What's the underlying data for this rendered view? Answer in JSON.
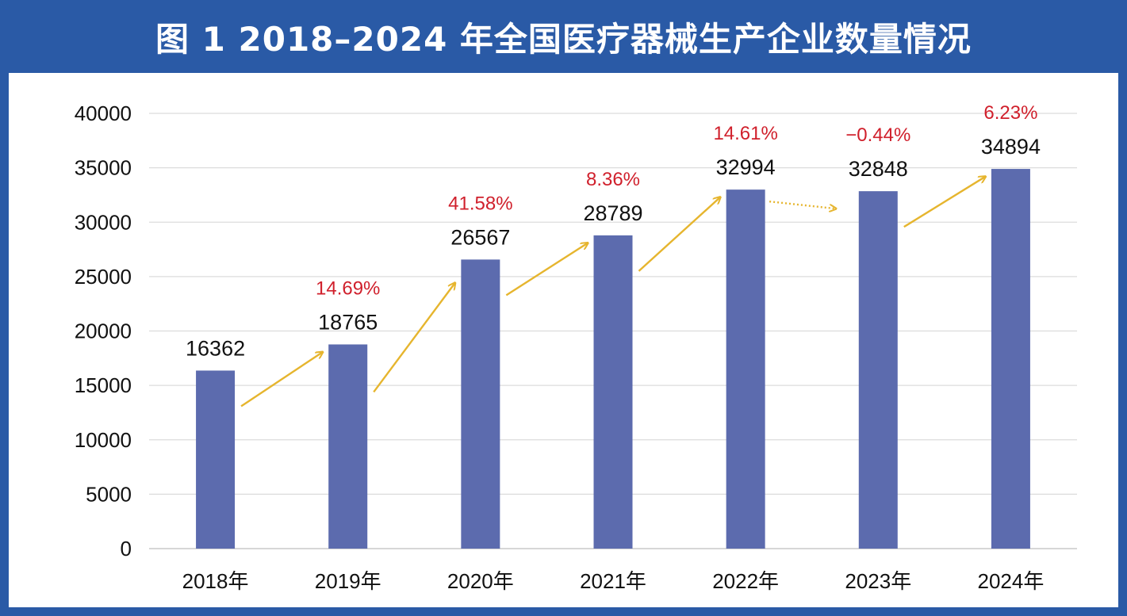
{
  "title": "图 1 2018–2024 年全国医疗器械生产企业数量情况",
  "colors": {
    "frame": "#2a5aa6",
    "bar": "#5c6bae",
    "arrow": "#e6b52e",
    "growth_text": "#d0202c",
    "grid": "#dcdcdc"
  },
  "chart_data": {
    "type": "bar",
    "title": "图 1 2018–2024 年全国医疗器械生产企业数量情况",
    "xlabel": "",
    "ylabel": "",
    "ylim": [
      0,
      40000
    ],
    "yticks": [
      0,
      5000,
      10000,
      15000,
      20000,
      25000,
      30000,
      35000,
      40000
    ],
    "grid": true,
    "legend": "none",
    "categories": [
      "2018年",
      "2019年",
      "2020年",
      "2021年",
      "2022年",
      "2023年",
      "2024年"
    ],
    "values": [
      16362,
      18765,
      26567,
      28789,
      32994,
      32848,
      34894
    ],
    "value_labels": [
      "16362",
      "18765",
      "26567",
      "28789",
      "32994",
      "32848",
      "34894"
    ],
    "growth_labels": [
      "",
      "14.69%",
      "41.58%",
      "8.36%",
      "14.61%",
      "−0.44%",
      "6.23%"
    ],
    "arrow_styles": [
      "solid",
      "solid",
      "solid",
      "solid",
      "dotted",
      "solid"
    ]
  }
}
